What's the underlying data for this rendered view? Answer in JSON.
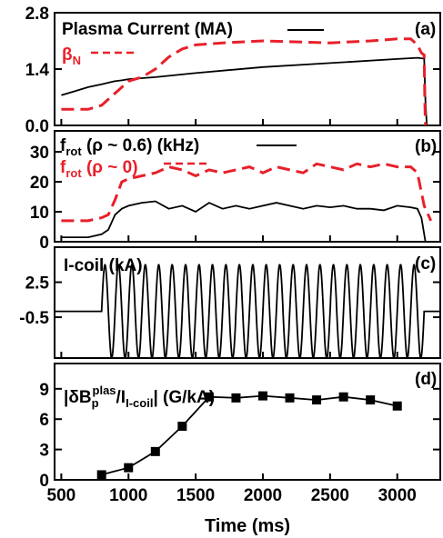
{
  "chart_data": [
    {
      "type": "line",
      "panel_tag": "(a)",
      "ylim": [
        0.0,
        2.8
      ],
      "y_ticks": [
        "0.0",
        "1.4",
        "2.8"
      ],
      "y_tick_values": [
        0.0,
        1.4,
        2.8
      ],
      "series": [
        {
          "name": "Plasma Current (MA)",
          "color": "#000000",
          "style": "solid",
          "x": [
            500,
            600,
            700,
            800,
            900,
            950,
            1000,
            1200,
            1500,
            2000,
            2500,
            3000,
            3150,
            3200,
            3210,
            3220,
            3300
          ],
          "values": [
            0.75,
            0.85,
            0.95,
            1.02,
            1.1,
            1.12,
            1.15,
            1.2,
            1.3,
            1.45,
            1.55,
            1.65,
            1.68,
            1.66,
            0.6,
            0.0,
            0.0
          ]
        },
        {
          "name": "βN",
          "color": "#e8202a",
          "style": "dashed",
          "x": [
            500,
            700,
            800,
            900,
            1000,
            1100,
            1200,
            1300,
            1400,
            1500,
            1700,
            2000,
            2500,
            2800,
            3000,
            3100,
            3150,
            3180,
            3200,
            3205,
            3210
          ],
          "values": [
            0.4,
            0.4,
            0.5,
            0.8,
            1.1,
            1.2,
            1.4,
            1.7,
            1.9,
            2.0,
            2.05,
            2.1,
            2.05,
            2.1,
            2.15,
            2.15,
            2.0,
            1.8,
            1.75,
            0.6,
            0.0
          ]
        }
      ]
    },
    {
      "type": "line",
      "panel_tag": "(b)",
      "ylim": [
        0,
        37
      ],
      "y_ticks": [
        "0",
        "10",
        "20",
        "30"
      ],
      "y_tick_values": [
        0,
        10,
        20,
        30
      ],
      "series": [
        {
          "name": "frot (ρ ~ 0.6) (kHz)",
          "color": "#000000",
          "style": "solid",
          "x": [
            500,
            700,
            800,
            850,
            900,
            950,
            1000,
            1100,
            1200,
            1300,
            1400,
            1500,
            1600,
            1700,
            1800,
            1900,
            2000,
            2100,
            2200,
            2300,
            2400,
            2500,
            2600,
            2700,
            2800,
            2900,
            3000,
            3100,
            3150,
            3180,
            3210,
            3250
          ],
          "values": [
            1.5,
            1.5,
            2.5,
            4,
            9,
            11,
            12,
            13,
            13.5,
            11,
            12,
            10,
            13,
            11,
            12,
            11,
            12,
            13,
            12,
            11,
            12,
            11.5,
            12,
            11,
            11,
            10.5,
            12,
            11.5,
            11,
            8,
            0,
            0
          ]
        },
        {
          "name": "frot (ρ ~ 0)",
          "color": "#e8202a",
          "style": "dashed",
          "x": [
            500,
            700,
            800,
            850,
            900,
            950,
            1000,
            1100,
            1200,
            1300,
            1400,
            1500,
            1600,
            1700,
            1800,
            1900,
            2000,
            2100,
            2200,
            2300,
            2400,
            2500,
            2600,
            2700,
            2800,
            2900,
            3000,
            3100,
            3150,
            3200,
            3250
          ],
          "values": [
            7,
            7,
            8,
            9,
            14,
            20,
            21,
            22,
            23,
            25,
            24,
            22,
            24,
            23,
            24,
            25,
            23,
            25,
            24,
            23,
            26,
            25,
            24,
            26,
            25,
            26,
            25,
            25,
            23,
            12,
            7
          ]
        }
      ]
    },
    {
      "type": "line",
      "panel_tag": "(c)",
      "ylim": [
        -4.0,
        5.5
      ],
      "y_ticks": [
        "2.5",
        "-0.5"
      ],
      "y_tick_values": [
        2.5,
        -0.5
      ],
      "series": [
        {
          "name": "I-coil (kA)",
          "color": "#000000",
          "style": "solid",
          "start": 800,
          "end": 3200,
          "period": 100,
          "amplitude": 4.0,
          "baseline": 0.0
        }
      ]
    },
    {
      "type": "line",
      "panel_tag": "(d)",
      "ylim": [
        0,
        11.5
      ],
      "y_ticks": [
        "0",
        "3",
        "6",
        "9"
      ],
      "y_tick_values": [
        0,
        3,
        6,
        9
      ],
      "x_ticks": [
        "500",
        "1000",
        "1500",
        "2000",
        "2500",
        "3000"
      ],
      "x_tick_values": [
        500,
        1000,
        1500,
        2000,
        2500,
        3000
      ],
      "xlabel": "Time (ms)",
      "series": [
        {
          "name": "|δBp plas/II-coil| (G/kA)",
          "color": "#000000",
          "style": "solid-markers",
          "x": [
            800,
            1000,
            1200,
            1400,
            1600,
            1800,
            2000,
            2200,
            2400,
            2600,
            2800,
            3000
          ],
          "values": [
            0.5,
            1.2,
            2.8,
            5.3,
            8.2,
            8.1,
            8.3,
            8.1,
            7.9,
            8.2,
            7.9,
            7.3
          ]
        }
      ]
    }
  ],
  "legend": {
    "a_line1": "Plasma Current (MA)",
    "a_line2_main": "β",
    "a_line2_sub": "N",
    "b_line1_main": "f",
    "b_line1_sub": "rot",
    "b_line1_rest": " (ρ ~ 0.6) (kHz)",
    "b_line2_main": "f",
    "b_line2_sub": "rot",
    "b_line2_rest": " (ρ ~ 0)",
    "c_line1": "I-coil (kA)",
    "d_pre": "|δB",
    "d_sub": "p",
    "d_sup": "plas",
    "d_mid": "/I",
    "d_sub2": "I-coil",
    "d_post": "| (G/kA)"
  },
  "colors": {
    "black": "#000000",
    "red": "#e8202a"
  }
}
